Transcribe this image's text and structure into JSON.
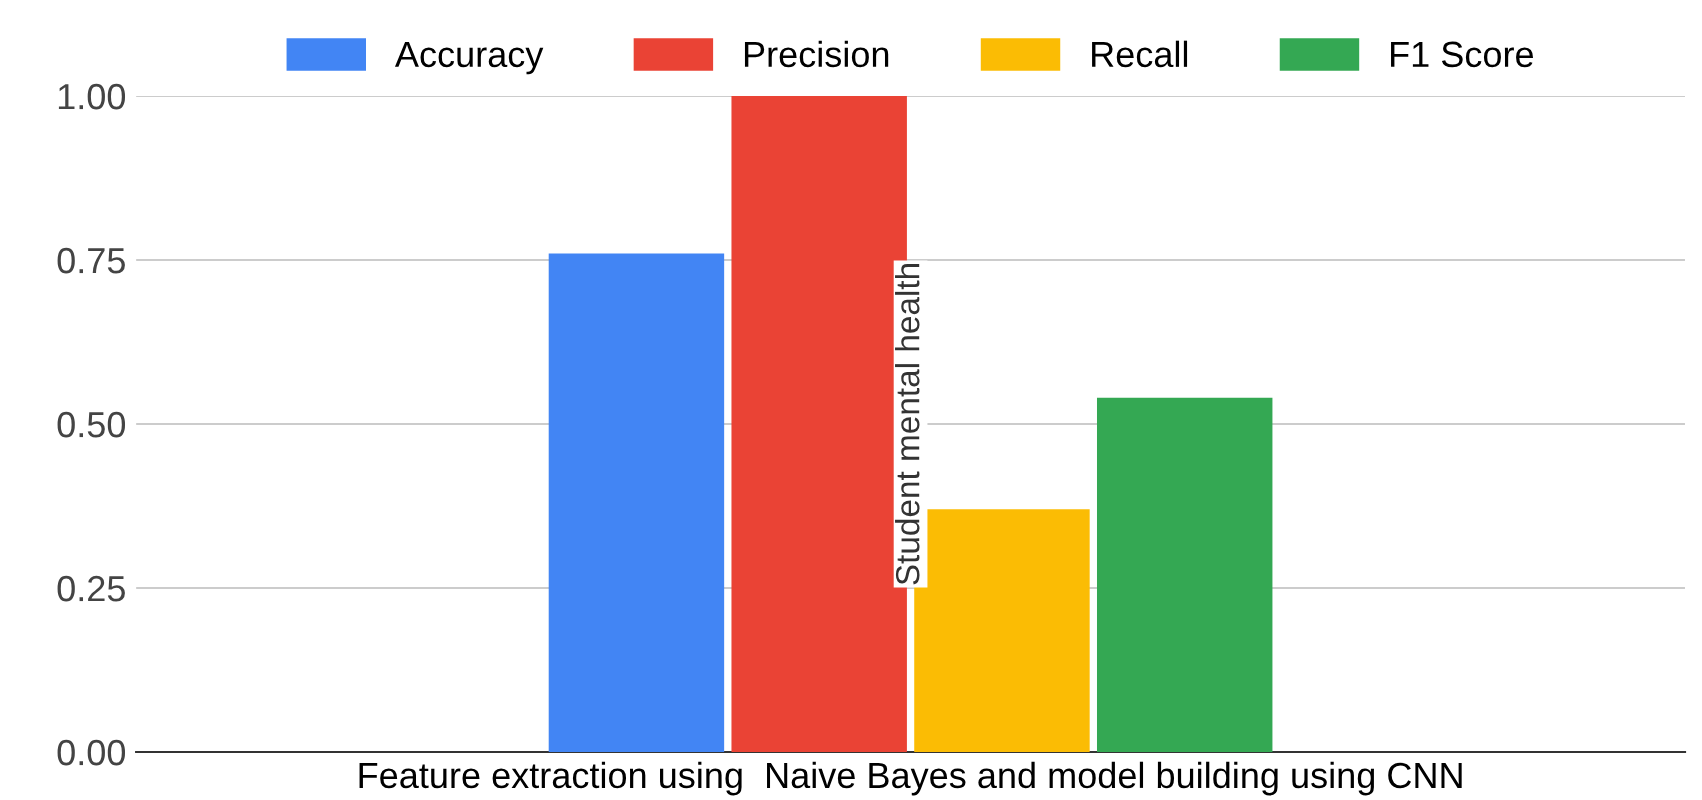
{
  "chart_data": {
    "type": "bar",
    "categories": [
      "Feature extraction using  Naive Bayes and model building using CNN"
    ],
    "series": [
      {
        "name": "Accuracy",
        "color": "#4285f4",
        "values": [
          0.76
        ]
      },
      {
        "name": "Precision",
        "color": "#ea4335",
        "values": [
          1.0
        ]
      },
      {
        "name": "Recall",
        "color": "#fbbc04",
        "values": [
          0.37
        ]
      },
      {
        "name": "F1 Score",
        "color": "#34a853",
        "values": [
          0.54
        ]
      }
    ],
    "ylim": [
      0,
      1.0
    ],
    "yticks": [
      {
        "value": 0,
        "label": "0.00"
      },
      {
        "value": 0.25,
        "label": "0.25"
      },
      {
        "value": 0.5,
        "label": "0.50"
      },
      {
        "value": 0.75,
        "label": "0.75"
      },
      {
        "value": 1.0,
        "label": "1.00"
      }
    ],
    "grid": "y",
    "legend": "top",
    "annotations": [
      "Student mental health"
    ]
  }
}
